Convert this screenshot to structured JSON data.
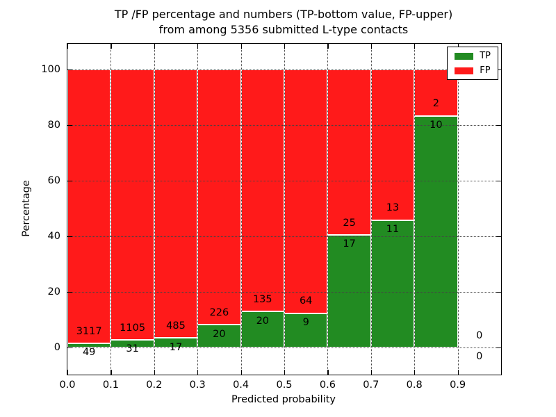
{
  "title": {
    "line1": "TP /FP percentage and numbers (TP-bottom value, FP-upper)",
    "line2": "from among 5356 submitted L-type contacts"
  },
  "axes": {
    "xlabel": "Predicted probability",
    "ylabel": "Percentage"
  },
  "legend": {
    "tp": "TP",
    "fp": "FP"
  },
  "colors": {
    "tp": "#228b22",
    "fp": "#ff1a1a",
    "grid": "#444444",
    "spine": "#000000"
  },
  "chart_data": {
    "type": "bar",
    "subtype": "stacked-percentage",
    "title": "TP /FP percentage and numbers (TP-bottom value, FP-upper)\nfrom among 5356 submitted L-type contacts",
    "xlabel": "Predicted probability",
    "ylabel": "Percentage",
    "total_contacts": 5356,
    "xlim": [
      0.0,
      1.0
    ],
    "ylim": [
      -9.75,
      109.25
    ],
    "y_ticks": [
      0,
      20,
      40,
      60,
      80,
      100
    ],
    "x_tick_labels": [
      "0.0",
      "0.1",
      "0.2",
      "0.3",
      "0.4",
      "0.5",
      "0.6",
      "0.7",
      "0.8",
      "0.9"
    ],
    "grid": "dotted, drawn above bars",
    "legend_position": "upper-right",
    "tick_direction": "in",
    "bar_bin_width": 0.1,
    "bins": [
      {
        "range": [
          0.0,
          0.1
        ],
        "tp": 49,
        "fp": 3117
      },
      {
        "range": [
          0.1,
          0.2
        ],
        "tp": 31,
        "fp": 1105
      },
      {
        "range": [
          0.2,
          0.3
        ],
        "tp": 17,
        "fp": 485
      },
      {
        "range": [
          0.3,
          0.4
        ],
        "tp": 20,
        "fp": 226
      },
      {
        "range": [
          0.4,
          0.5
        ],
        "tp": 20,
        "fp": 135
      },
      {
        "range": [
          0.5,
          0.6
        ],
        "tp": 9,
        "fp": 64
      },
      {
        "range": [
          0.6,
          0.7
        ],
        "tp": 17,
        "fp": 25
      },
      {
        "range": [
          0.7,
          0.8
        ],
        "tp": 11,
        "fp": 13
      },
      {
        "range": [
          0.8,
          0.9
        ],
        "tp": 10,
        "fp": 2
      },
      {
        "range": [
          0.9,
          1.0
        ],
        "tp": 0,
        "fp": 0
      }
    ],
    "series": [
      {
        "name": "TP",
        "role": "bottom segment, percentage of bin total",
        "color": "#228b22"
      },
      {
        "name": "FP",
        "role": "upper segment, percentage of bin total",
        "color": "#ff1a1a"
      }
    ]
  }
}
